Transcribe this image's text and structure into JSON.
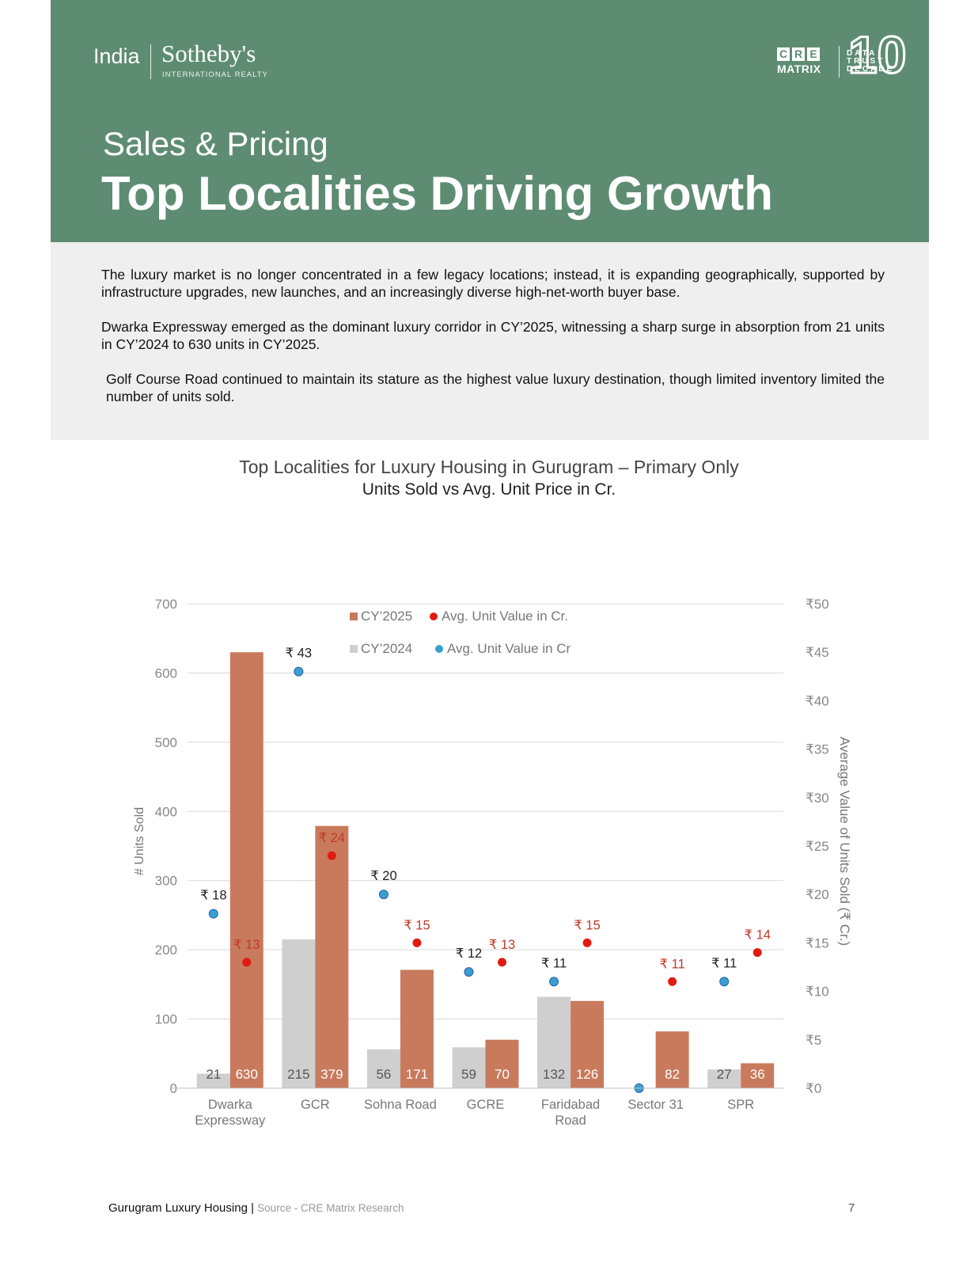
{
  "brand": {
    "india": "India",
    "sothebys": "Sotheby's",
    "international": "INTERNATIONAL REALTY",
    "cre_letters": [
      "C",
      "R",
      "E"
    ],
    "cre_matrix": "MATRIX",
    "decade_number": "10",
    "decade_words": [
      "DATA",
      "TRUST",
      "DECADE"
    ]
  },
  "header": {
    "kicker": "Sales & Pricing",
    "title": "Top Localities Driving Growth",
    "bg_color": "#5e8c72"
  },
  "intro": {
    "paragraphs": [
      "The luxury market is no longer concentrated in a few legacy locations; instead, it is expanding geographically, supported by infrastructure upgrades, new launches, and an increasingly diverse high-net-worth buyer base.",
      "Dwarka Expressway emerged as the dominant luxury corridor in CY’2025, witnessing a sharp surge in absorption from 21 units in CY’2024 to 630 units in CY’2025.",
      "Golf Course Road continued to maintain its stature as the highest value luxury destination, though limited inventory limited the number of units sold."
    ]
  },
  "chart_title": {
    "line1": "Top Localities for Luxury Housing in Gurugram – Primary Only",
    "line2": "Units Sold vs Avg. Unit Price in Cr."
  },
  "chart_data": {
    "type": "bar",
    "categories": [
      "Dwarka\nExpressway",
      "GCR",
      "Sohna Road",
      "GCRE",
      "Faridabad\nRoad",
      "Sector 31",
      "SPR"
    ],
    "series": [
      {
        "name": "CY’2024",
        "type": "bar",
        "axis": "left",
        "color": "#cfcfcf",
        "values": [
          21,
          215,
          56,
          59,
          132,
          null,
          27
        ]
      },
      {
        "name": "CY’2025",
        "type": "bar",
        "axis": "left",
        "color": "#c97a5c",
        "values": [
          630,
          379,
          171,
          70,
          126,
          82,
          36
        ]
      },
      {
        "name": "Avg. Unit Value in Cr",
        "type": "scatter",
        "axis": "right",
        "color": "#3a9fcf",
        "values": [
          18,
          43,
          20,
          12,
          11,
          0,
          11
        ],
        "labels": [
          "₹ 18",
          "₹ 43",
          "₹ 20",
          "₹ 12",
          "₹ 11",
          "",
          "₹ 11"
        ]
      },
      {
        "name": "Avg. Unit Value in Cr.",
        "type": "scatter",
        "axis": "right",
        "color": "#e01b10",
        "values": [
          13,
          24,
          15,
          13,
          15,
          11,
          14
        ],
        "labels": [
          "₹ 13",
          "₹ 24",
          "₹ 15",
          "₹ 13",
          "₹ 15",
          "₹ 11",
          "₹ 14"
        ]
      }
    ],
    "bar_labels_2024": [
      "21",
      "215",
      "56",
      "59",
      "132",
      "",
      "27"
    ],
    "bar_labels_2025": [
      "630",
      "379",
      "171",
      "70",
      "126",
      "82",
      "36"
    ],
    "ylabel": "# Units Sold",
    "y2label": "Average Value of Units Sold (₹ Cr.)",
    "ylim": [
      0,
      700
    ],
    "y2lim": [
      0,
      50
    ],
    "yticks": [
      "0",
      "100",
      "200",
      "300",
      "400",
      "500",
      "600",
      "700"
    ],
    "y2ticks": [
      "₹0",
      "₹5",
      "₹10",
      "₹15",
      "₹20",
      "₹25",
      "₹30",
      "₹35",
      "₹40",
      "₹45",
      "₹50"
    ],
    "legend": {
      "row1": [
        "CY’2025",
        "Avg. Unit Value in Cr."
      ],
      "row2": [
        "CY’2024",
        "Avg. Unit Value in Cr"
      ]
    },
    "legend_position": "top-center",
    "grid": true
  },
  "footer": {
    "report": "Gurugram Luxury Housing",
    "sep": "|",
    "source": "Source - CRE Matrix Research",
    "page": "7"
  }
}
